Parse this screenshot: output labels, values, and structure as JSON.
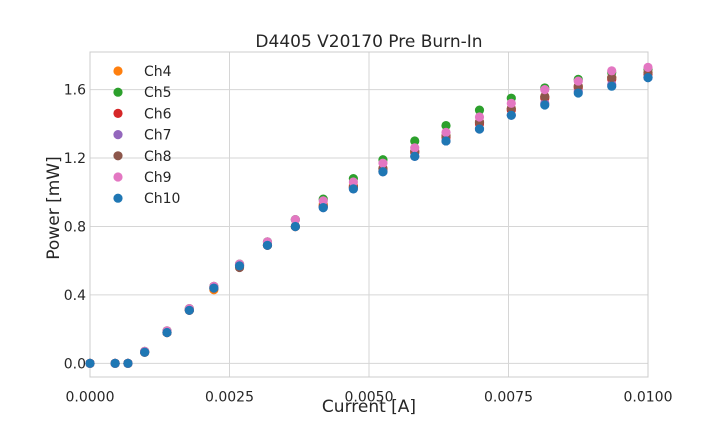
{
  "chart_data": {
    "type": "scatter",
    "title": "D4405 V20170 Pre Burn-In",
    "xlabel": "Current [A]",
    "ylabel": "Power [mW]",
    "xlim": [
      0.0,
      0.01
    ],
    "ylim": [
      -0.08,
      1.82
    ],
    "xticks": [
      0.0,
      0.0025,
      0.005,
      0.0075,
      0.01
    ],
    "xtick_labels": [
      "0.0000",
      "0.0025",
      "0.0050",
      "0.0075",
      "0.0100"
    ],
    "yticks": [
      0.0,
      0.4,
      0.8,
      1.2,
      1.6
    ],
    "ytick_labels": [
      "0.0",
      "0.4",
      "0.8",
      "1.2",
      "1.6"
    ],
    "grid": true,
    "legend_position": "top-left",
    "series": [
      {
        "name": "Ch4",
        "color": "#ff7f0e",
        "x": [
          0.0,
          0.00045,
          0.00068,
          0.00098,
          0.00138,
          0.00178,
          0.00222,
          0.00268,
          0.00318,
          0.00368,
          0.00418,
          0.00472,
          0.00525,
          0.00582,
          0.00638,
          0.00698,
          0.00755,
          0.00815,
          0.00875,
          0.00935,
          0.01
        ],
        "y": [
          0.0,
          0.0,
          0.0,
          0.065,
          0.18,
          0.31,
          0.43,
          0.57,
          0.69,
          0.8,
          0.93,
          1.04,
          1.14,
          1.24,
          1.33,
          1.41,
          1.49,
          1.56,
          1.62,
          1.67,
          1.7
        ]
      },
      {
        "name": "Ch5",
        "color": "#2ca02c",
        "x": [
          0.0,
          0.00045,
          0.00068,
          0.00098,
          0.00138,
          0.00178,
          0.00222,
          0.00268,
          0.00318,
          0.00368,
          0.00418,
          0.00472,
          0.00525,
          0.00582,
          0.00638,
          0.00698,
          0.00755,
          0.00815,
          0.00875,
          0.00935,
          0.01
        ],
        "y": [
          0.0,
          0.0,
          0.0,
          0.07,
          0.19,
          0.32,
          0.45,
          0.58,
          0.71,
          0.84,
          0.96,
          1.08,
          1.19,
          1.3,
          1.39,
          1.48,
          1.55,
          1.61,
          1.66,
          1.7,
          1.72
        ]
      },
      {
        "name": "Ch6",
        "color": "#d62728",
        "x": [
          0.0,
          0.00045,
          0.00068,
          0.00098,
          0.00138,
          0.00178,
          0.00222,
          0.00268,
          0.00318,
          0.00368,
          0.00418,
          0.00472,
          0.00525,
          0.00582,
          0.00638,
          0.00698,
          0.00755,
          0.00815,
          0.00875,
          0.00935,
          0.01
        ],
        "y": [
          0.0,
          0.0,
          0.0,
          0.065,
          0.18,
          0.31,
          0.44,
          0.57,
          0.69,
          0.8,
          0.92,
          1.03,
          1.13,
          1.23,
          1.32,
          1.4,
          1.48,
          1.55,
          1.61,
          1.66,
          1.69
        ]
      },
      {
        "name": "Ch7",
        "color": "#9467bd",
        "x": [
          0.0,
          0.00045,
          0.00068,
          0.00098,
          0.00138,
          0.00178,
          0.00222,
          0.00268,
          0.00318,
          0.00368,
          0.00418,
          0.00472,
          0.00525,
          0.00582,
          0.00638,
          0.00698,
          0.00755,
          0.00815,
          0.00875,
          0.00935,
          0.01
        ],
        "y": [
          0.0,
          0.0,
          0.0,
          0.065,
          0.18,
          0.31,
          0.44,
          0.57,
          0.69,
          0.8,
          0.91,
          1.02,
          1.12,
          1.21,
          1.3,
          1.37,
          1.45,
          1.52,
          1.59,
          1.63,
          1.67
        ]
      },
      {
        "name": "Ch8",
        "color": "#8c564b",
        "x": [
          0.0,
          0.00045,
          0.00068,
          0.00098,
          0.00138,
          0.00178,
          0.00222,
          0.00268,
          0.00318,
          0.00368,
          0.00418,
          0.00472,
          0.00525,
          0.00582,
          0.00638,
          0.00698,
          0.00755,
          0.00815,
          0.00875,
          0.00935,
          0.01
        ],
        "y": [
          0.0,
          0.0,
          0.0,
          0.065,
          0.18,
          0.31,
          0.44,
          0.56,
          0.69,
          0.8,
          0.92,
          1.03,
          1.14,
          1.24,
          1.33,
          1.41,
          1.49,
          1.56,
          1.62,
          1.67,
          1.7
        ]
      },
      {
        "name": "Ch9",
        "color": "#e377c2",
        "x": [
          0.0,
          0.00045,
          0.00068,
          0.00098,
          0.00138,
          0.00178,
          0.00222,
          0.00268,
          0.00318,
          0.00368,
          0.00418,
          0.00472,
          0.00525,
          0.00582,
          0.00638,
          0.00698,
          0.00755,
          0.00815,
          0.00875,
          0.00935,
          0.01
        ],
        "y": [
          0.0,
          0.0,
          0.0,
          0.07,
          0.19,
          0.32,
          0.45,
          0.58,
          0.71,
          0.84,
          0.95,
          1.06,
          1.17,
          1.26,
          1.35,
          1.44,
          1.52,
          1.6,
          1.65,
          1.71,
          1.73
        ]
      },
      {
        "name": "Ch10",
        "color": "#1f77b4",
        "x": [
          0.0,
          0.00045,
          0.00068,
          0.00098,
          0.00138,
          0.00178,
          0.00222,
          0.00268,
          0.00318,
          0.00368,
          0.00418,
          0.00472,
          0.00525,
          0.00582,
          0.00638,
          0.00698,
          0.00755,
          0.00815,
          0.00875,
          0.00935,
          0.01
        ],
        "y": [
          0.0,
          0.0,
          0.0,
          0.065,
          0.18,
          0.31,
          0.44,
          0.57,
          0.69,
          0.8,
          0.91,
          1.02,
          1.12,
          1.21,
          1.3,
          1.37,
          1.45,
          1.51,
          1.58,
          1.62,
          1.67
        ]
      }
    ]
  }
}
